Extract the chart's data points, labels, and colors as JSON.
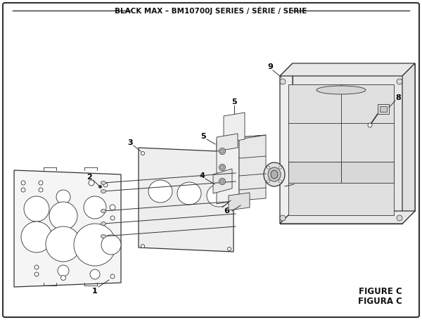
{
  "title": "BLACK MAX – BM10700J SERIES / SÉRIE / SERIE",
  "figure_label": "FIGURE C",
  "figura_label": "FIGURA C",
  "bg_color": "#ffffff",
  "lc": "#333333",
  "lc_dark": "#111111",
  "fill_light": "#f0f0f0",
  "fill_mid": "#e0e0e0",
  "fill_dark": "#cccccc"
}
